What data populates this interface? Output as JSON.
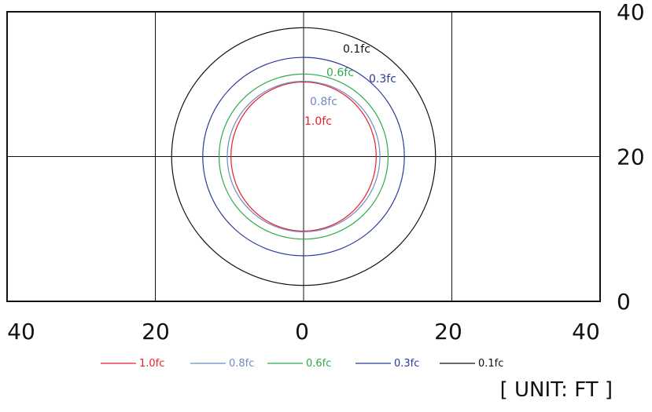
{
  "chart_data": {
    "type": "contour",
    "title": "",
    "xlabel": "",
    "ylabel": "",
    "unit_label": "[ UNIT: FT ]",
    "xlim": [
      -40,
      40
    ],
    "ylim": [
      0,
      40
    ],
    "x_ticks": [
      -40,
      -20,
      0,
      20,
      40
    ],
    "x_tick_labels": [
      "40",
      "20",
      "0",
      "20",
      "40"
    ],
    "y_ticks": [
      0,
      20,
      40
    ],
    "y_tick_labels": [
      "0",
      "20",
      "40"
    ],
    "grid": true,
    "grid_lines_x": [
      -20,
      0,
      20
    ],
    "grid_lines_y": [
      20
    ],
    "legend_position": "bottom",
    "center": [
      0,
      20
    ],
    "series": [
      {
        "name": "1.0fc",
        "color": "#e8202a",
        "radius_x": 9.8,
        "radius_y": 10.3
      },
      {
        "name": "0.8fc",
        "color": "#6f8bc4",
        "radius_x": 10.3,
        "radius_y": 10.4
      },
      {
        "name": "0.6fc",
        "color": "#2eaa4a",
        "radius_x": 11.4,
        "radius_y": 11.4
      },
      {
        "name": "0.3fc",
        "color": "#2a3a9a",
        "radius_x": 13.6,
        "radius_y": 13.7
      },
      {
        "name": "0.1fc",
        "color": "#111111",
        "radius_x": 17.8,
        "radius_y": 17.8
      }
    ]
  }
}
